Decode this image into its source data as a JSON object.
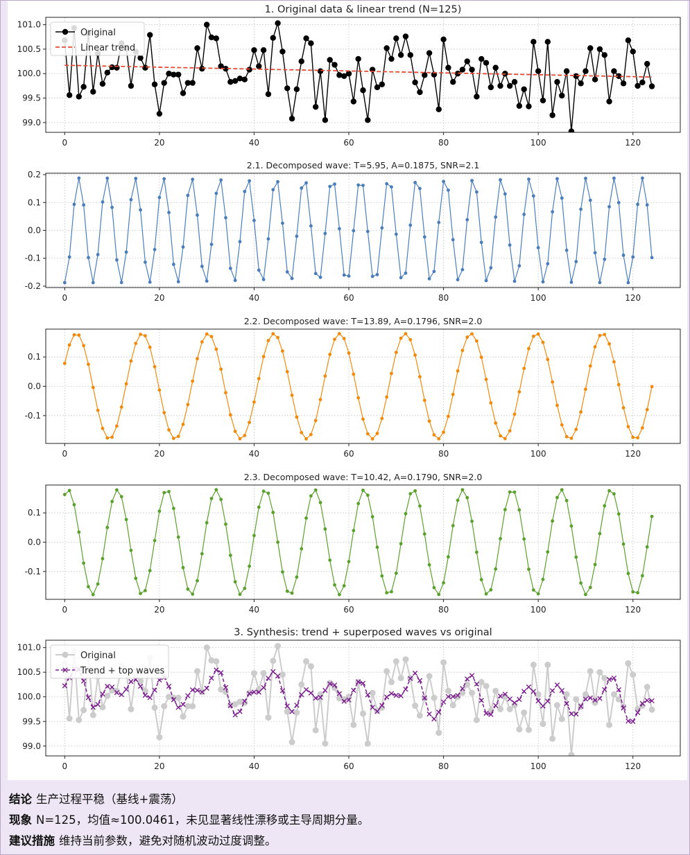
{
  "chart_data": [
    {
      "type": "line",
      "title": "1. Original data & linear trend (N=125)",
      "x_ticks": [
        0,
        20,
        40,
        60,
        80,
        100,
        120
      ],
      "y_ticks": [
        "99.0",
        "99.5",
        "100.0",
        "100.5",
        "101.0"
      ],
      "xlim": [
        -4,
        130
      ],
      "ylim": [
        98.8,
        101.15
      ],
      "grid": true,
      "legend_position": "top-left",
      "series": [
        {
          "name": "Original",
          "color": "#000000",
          "marker": "circle",
          "x_start": 0,
          "values": [
            100.68,
            99.56,
            100.93,
            99.53,
            99.73,
            100.82,
            99.63,
            100.41,
            99.79,
            100.02,
            100.13,
            100.12,
            100.62,
            100.52,
            99.75,
            100.45,
            100.32,
            100.12,
            100.79,
            99.78,
            99.18,
            99.81,
            100.0,
            99.98,
            99.98,
            99.6,
            99.81,
            99.81,
            100.52,
            100.1,
            101.0,
            100.74,
            100.72,
            100.15,
            100.1,
            99.83,
            99.85,
            99.9,
            99.88,
            100.08,
            100.48,
            100.15,
            100.48,
            99.58,
            100.73,
            101.03,
            100.45,
            99.7,
            99.08,
            99.68,
            100.25,
            100.72,
            100.62,
            99.32,
            100.05,
            99.05,
            100.28,
            100.18,
            99.97,
            99.95,
            100.0,
            99.43,
            100.3,
            99.66,
            99.05,
            100.08,
            99.72,
            99.78,
            100.52,
            100.3,
            100.72,
            100.38,
            100.76,
            100.38,
            99.82,
            99.62,
            99.97,
            100.42,
            99.98,
            99.27,
            100.7,
            100.12,
            99.83,
            100.0,
            100.08,
            100.25,
            100.08,
            99.53,
            100.3,
            100.22,
            99.72,
            100.12,
            99.75,
            100.0,
            99.75,
            99.83,
            99.34,
            99.68,
            99.33,
            100.65,
            100.05,
            99.45,
            100.65,
            99.15,
            99.83,
            99.55,
            100.05,
            98.82,
            99.95,
            99.8,
            100.05,
            100.52,
            99.88,
            100.5,
            100.38,
            99.43,
            100.05,
            99.95,
            99.8,
            100.68,
            100.45,
            99.75,
            99.82,
            100.2,
            99.74
          ]
        },
        {
          "name": "Linear trend",
          "color": "#e24a33",
          "dashed": true,
          "x": [
            0,
            124
          ],
          "values": [
            100.17,
            99.93
          ]
        }
      ]
    },
    {
      "type": "line",
      "title": "2.1. Decomposed wave: T=5.95, A=0.1875, SNR=2.1",
      "period": 5.95,
      "amplitude": 0.1875,
      "phase": -1.59,
      "x_start": 0,
      "x_end": 124,
      "x_ticks": [
        0,
        20,
        40,
        60,
        80,
        100,
        120
      ],
      "y_ticks": [
        "-0.2",
        "-0.1",
        "0.0",
        "0.1",
        "0.2"
      ],
      "xlim": [
        -4,
        130
      ],
      "ylim": [
        -0.205,
        0.205
      ],
      "grid": true,
      "series_color": "#4a7dba"
    },
    {
      "type": "line",
      "title": "2.2. Decomposed wave: T=13.89, A=0.1796, SNR=2.0",
      "period": 13.89,
      "amplitude": 0.1796,
      "phase": 0.45,
      "x_start": 0,
      "x_end": 124,
      "x_ticks": [
        0,
        20,
        40,
        60,
        80,
        100,
        120
      ],
      "y_ticks": [
        "-0.1",
        "0.0",
        "0.1"
      ],
      "xlim": [
        -4,
        130
      ],
      "ylim": [
        -0.195,
        0.195
      ],
      "grid": true,
      "series_color": "#ef8a0c"
    },
    {
      "type": "line",
      "title": "2.3. Decomposed wave: T=10.42, A=0.1790, SNR=2.0",
      "period": 10.42,
      "amplitude": 0.179,
      "phase": 1.14,
      "x_start": 0,
      "x_end": 124,
      "x_ticks": [
        0,
        20,
        40,
        60,
        80,
        100,
        120
      ],
      "y_ticks": [
        "-0.1",
        "0.0",
        "0.1"
      ],
      "xlim": [
        -4,
        130
      ],
      "ylim": [
        -0.195,
        0.195
      ],
      "grid": true,
      "series_color": "#5aa02c"
    },
    {
      "type": "line",
      "title": "3. Synthesis: trend + superposed waves vs original",
      "x_ticks": [
        0,
        20,
        40,
        60,
        80,
        100,
        120
      ],
      "y_ticks": [
        "99.0",
        "99.5",
        "100.0",
        "100.5",
        "101.0"
      ],
      "xlim": [
        -4,
        130
      ],
      "ylim": [
        98.8,
        101.15
      ],
      "grid": true,
      "legend_position": "top-left",
      "series": [
        {
          "name": "Original",
          "color": "#cccccc",
          "marker": "circle"
        },
        {
          "name": "Trend + top waves",
          "color": "#7b1f8e",
          "marker": "x",
          "dashed": true
        }
      ]
    }
  ],
  "summary": {
    "conclusion_label": "结论",
    "conclusion_text": "生产过程平稳（基线+震荡）",
    "phenomenon_label": "现象",
    "phenomenon_text": "N=125，均值≈100.0461，未见显著线性漂移或主导周期分量。",
    "advice_label": "建议措施",
    "advice_text": "维持当前参数，避免对随机波动过度调整。"
  }
}
